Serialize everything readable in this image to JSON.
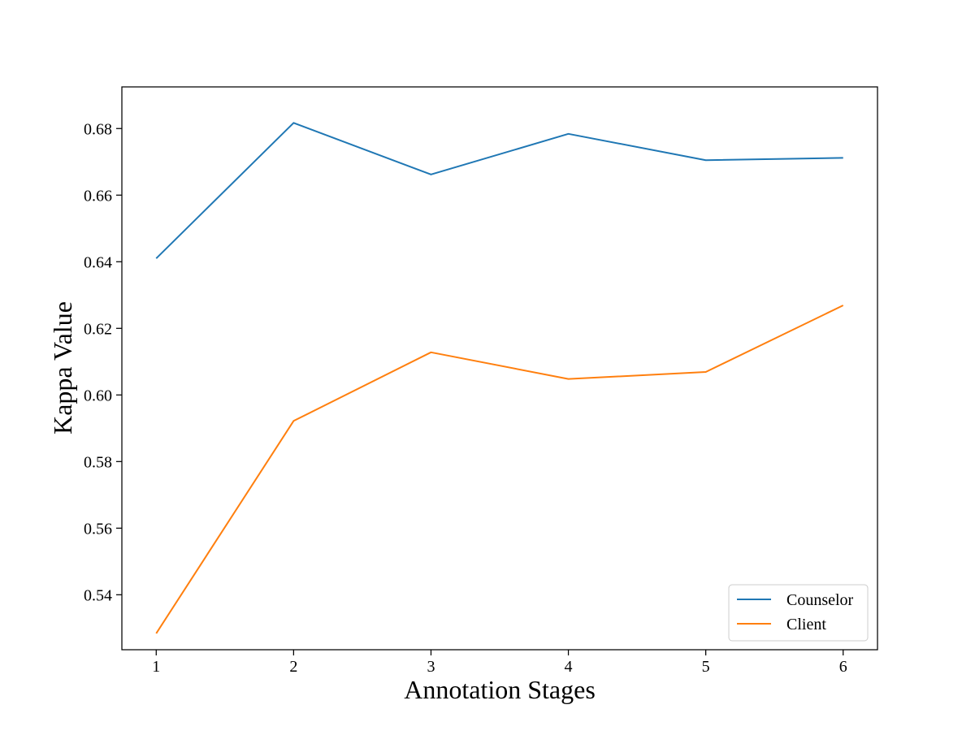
{
  "chart_data": {
    "type": "line",
    "title": "",
    "xlabel": "Annotation Stages",
    "ylabel": "Kappa Value",
    "x": [
      1,
      2,
      3,
      4,
      5,
      6
    ],
    "xticks": [
      "1",
      "2",
      "3",
      "4",
      "5",
      "6"
    ],
    "yticks": [
      "0.54",
      "0.56",
      "0.58",
      "0.60",
      "0.62",
      "0.64",
      "0.66",
      "0.68"
    ],
    "xlim": [
      0.75,
      6.25
    ],
    "ylim": [
      0.5235,
      0.6925
    ],
    "grid": false,
    "legend_position": "lower-right",
    "series": [
      {
        "name": "Counselor",
        "color": "#1f77b4",
        "values": [
          0.641,
          0.6817,
          0.6662,
          0.6784,
          0.6705,
          0.6712
        ]
      },
      {
        "name": "Client",
        "color": "#ff7f0e",
        "values": [
          0.5284,
          0.5922,
          0.6128,
          0.6048,
          0.6069,
          0.6269
        ]
      }
    ]
  }
}
